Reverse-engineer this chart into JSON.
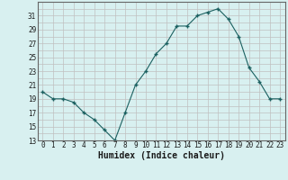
{
  "x": [
    0,
    1,
    2,
    3,
    4,
    5,
    6,
    7,
    8,
    9,
    10,
    11,
    12,
    13,
    14,
    15,
    16,
    17,
    18,
    19,
    20,
    21,
    22,
    23
  ],
  "y": [
    20,
    19,
    19,
    18.5,
    17,
    16,
    14.5,
    13,
    17,
    21,
    23,
    25.5,
    27,
    29.5,
    29.5,
    31,
    31.5,
    32,
    30.5,
    28,
    23.5,
    21.5,
    19,
    19
  ],
  "xlabel": "Humidex (Indice chaleur)",
  "ylim": [
    13,
    33
  ],
  "xlim": [
    -0.5,
    23.5
  ],
  "yticks": [
    13,
    15,
    17,
    19,
    21,
    23,
    25,
    27,
    29,
    31
  ],
  "xticks": [
    0,
    1,
    2,
    3,
    4,
    5,
    6,
    7,
    8,
    9,
    10,
    11,
    12,
    13,
    14,
    15,
    16,
    17,
    18,
    19,
    20,
    21,
    22,
    23
  ],
  "line_color": "#1a6060",
  "marker_color": "#1a6060",
  "bg_color": "#d8f0f0",
  "grid_color": "#c0c0c0",
  "font_color": "#1a1a1a",
  "xlabel_fontsize": 7,
  "tick_fontsize": 5.5
}
